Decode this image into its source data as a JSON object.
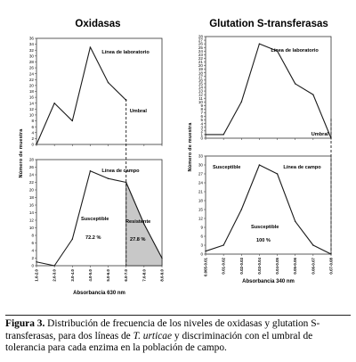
{
  "chart_data": [
    {
      "type": "line",
      "group": "Oxidasas",
      "title": "Línea de laboratorio",
      "xlabel": "",
      "ylabel": "Número de muestra",
      "x": [
        "1.0-2.0",
        "2.0-3.0",
        "3.0-4.0",
        "4.0-5.0",
        "5.0-6.0",
        "6.0-7.0"
      ],
      "values": [
        0,
        14,
        8,
        33,
        21,
        15
      ],
      "ylim": [
        0,
        36
      ],
      "yticks": [
        0,
        2,
        4,
        6,
        8,
        10,
        12,
        14,
        16,
        18,
        20,
        22,
        24,
        26,
        28,
        30,
        32,
        34,
        36
      ],
      "annotations": [
        "Umbral"
      ]
    },
    {
      "type": "area",
      "group": "Oxidasas",
      "title": "Línea de campo",
      "xlabel": "Absorbancia 630 nm",
      "ylabel": "",
      "categories": [
        "1.0-2.0",
        "2.0-3.0",
        "3.0-4.0",
        "4.0-5.0",
        "5.0-6.0",
        "6.0-7.0",
        "7.0-8.0",
        "8.0-9.0"
      ],
      "values": [
        1,
        0,
        7,
        25,
        23,
        22,
        11,
        2
      ],
      "ylim": [
        0,
        28
      ],
      "yticks": [
        0,
        2,
        4,
        6,
        8,
        10,
        12,
        14,
        16,
        18,
        20,
        22,
        24,
        26,
        28
      ],
      "annotations": [
        {
          "label": "Susceptible",
          "value": "72.2 %"
        },
        {
          "label": "Resistente",
          "value": "27.8 %"
        }
      ]
    },
    {
      "type": "line",
      "group": "Glutation S-transferasas",
      "title": "Línea de laboratorio",
      "xlabel": "",
      "ylabel": "Número de muestra",
      "x": [
        "0.005-0.01",
        "0.01-0.02",
        "0.02-0.03",
        "0.03-0.04",
        "0.04-0.05",
        "0.05-0.06",
        "0.06-0.07",
        "0.07-0.08"
      ],
      "values": [
        1,
        1,
        10,
        26,
        24,
        15,
        12,
        0
      ],
      "ylim": [
        0,
        28
      ],
      "yticks": [
        0,
        1,
        2,
        3,
        4,
        5,
        6,
        7,
        8,
        9,
        10,
        11,
        12,
        13,
        14,
        15,
        16,
        17,
        18,
        19,
        20,
        21,
        22,
        23,
        24,
        25,
        26,
        27,
        28
      ],
      "annotations": [
        "Umbral"
      ]
    },
    {
      "type": "line",
      "group": "Glutation S-transferasas",
      "title": "Línea de campo",
      "xlabel": "Absorbancia 340 nm",
      "ylabel": "",
      "categories": [
        "0.005-0.01",
        "0.01-0.02",
        "0.02-0.03",
        "0.03-0.04",
        "0.04-0.05",
        "0.05-0.06",
        "0.06-0.07",
        "0.07-0.08"
      ],
      "values": [
        1,
        3,
        15,
        30,
        27,
        11,
        3,
        0
      ],
      "ylim": [
        0,
        33
      ],
      "yticks": [
        0,
        3,
        6,
        9,
        12,
        15,
        18,
        21,
        24,
        27,
        30,
        33
      ],
      "annotations": [
        {
          "label": "Susceptible",
          "value": "100 %"
        },
        {
          "label": "Susceptible",
          "value": ""
        }
      ]
    }
  ],
  "headings": {
    "left": "Oxidasas",
    "right": "Glutation S-transferasas"
  },
  "notes": {
    "umbral": "Umbral"
  },
  "caption": {
    "label": "Figura 3.",
    "text_before": " Distribución de frecuencia de los niveles de oxidasas y glutation S-transferasas, para dos líneas de ",
    "species": "T. urticae",
    "text_after": " y discriminación con el umbral de tolerancia para cada enzima en la población de campo."
  },
  "colors": {
    "line": "#1a1a1a",
    "resistant_fill": "#c8c8c8",
    "frame": "#333333"
  }
}
